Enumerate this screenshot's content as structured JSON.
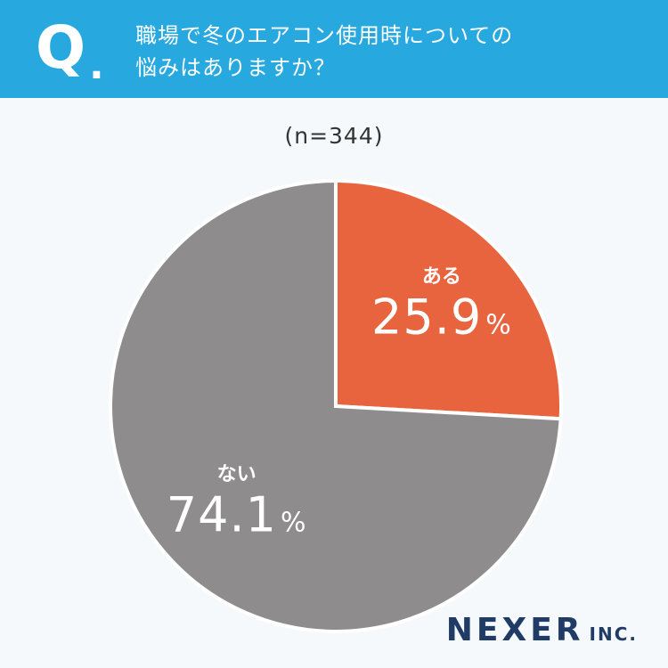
{
  "header": {
    "q_label": "Q",
    "q_dot": ".",
    "question_line1": "職場で冬のエアコン使用時についての",
    "question_line2": "悩みはありますか？",
    "bg_color": "#27a8df"
  },
  "sample_size": "(n=344)",
  "chart_data": {
    "type": "pie",
    "title": "",
    "slices": [
      {
        "label": "ある",
        "value": 25.9,
        "display": "25.9",
        "unit": "%",
        "color": "#e8643e"
      },
      {
        "label": "ない",
        "value": 74.1,
        "display": "74.1",
        "unit": "%",
        "color": "#8f8c8d"
      }
    ],
    "start": "12 o'clock",
    "direction": "clockwise"
  },
  "logo": {
    "main": "NEXER",
    "sub": "INC."
  }
}
